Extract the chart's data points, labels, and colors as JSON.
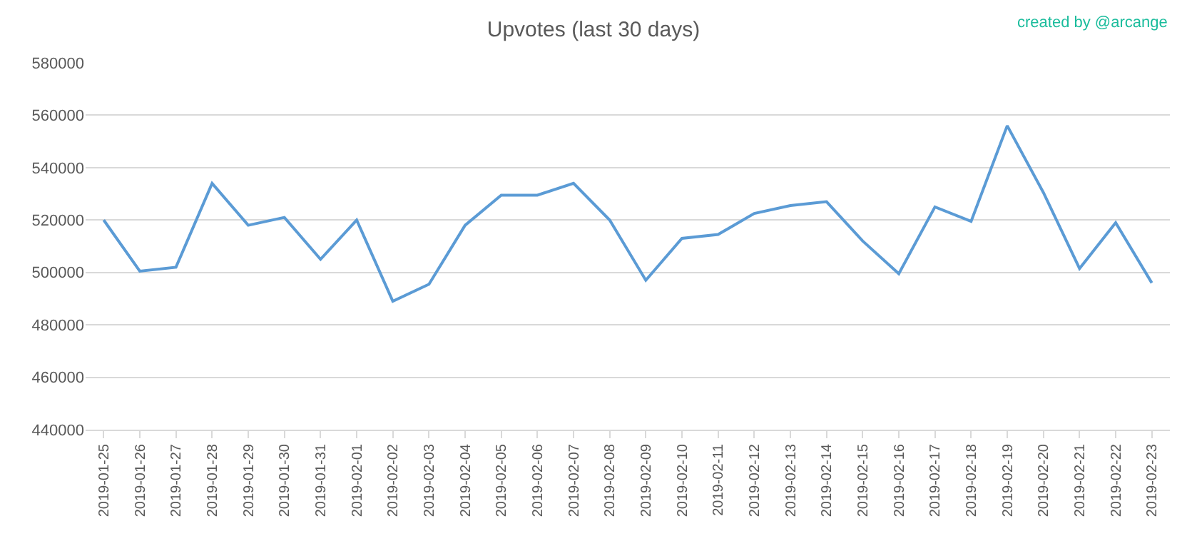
{
  "chart_data": {
    "type": "line",
    "title": "Upvotes (last 30 days)",
    "annotations": [
      "created by @arcange"
    ],
    "categories": [
      "2019-01-25",
      "2019-01-26",
      "2019-01-27",
      "2019-01-28",
      "2019-01-29",
      "2019-01-30",
      "2019-01-31",
      "2019-02-01",
      "2019-02-02",
      "2019-02-03",
      "2019-02-04",
      "2019-02-05",
      "2019-02-06",
      "2019-02-07",
      "2019-02-08",
      "2019-02-09",
      "2019-02-10",
      "2019-02-11",
      "2019-02-12",
      "2019-02-13",
      "2019-02-14",
      "2019-02-15",
      "2019-02-16",
      "2019-02-17",
      "2019-02-18",
      "2019-02-19",
      "2019-02-20",
      "2019-02-21",
      "2019-02-22",
      "2019-02-23"
    ],
    "series": [
      {
        "color": "#5b9bd5",
        "values": [
          520000,
          500500,
          502000,
          534000,
          518000,
          521000,
          505000,
          520000,
          489000,
          495500,
          518000,
          529500,
          529500,
          534000,
          520000,
          497000,
          513000,
          514500,
          522500,
          525500,
          527000,
          512000,
          499500,
          525000,
          519500,
          556000,
          530500,
          501500,
          519000,
          496000
        ]
      }
    ],
    "ylim": [
      440000,
      580000
    ],
    "yticks": [
      440000,
      460000,
      480000,
      500000,
      520000,
      540000,
      560000,
      580000
    ],
    "grid": "y",
    "marker": "none",
    "line_style": "solid"
  }
}
